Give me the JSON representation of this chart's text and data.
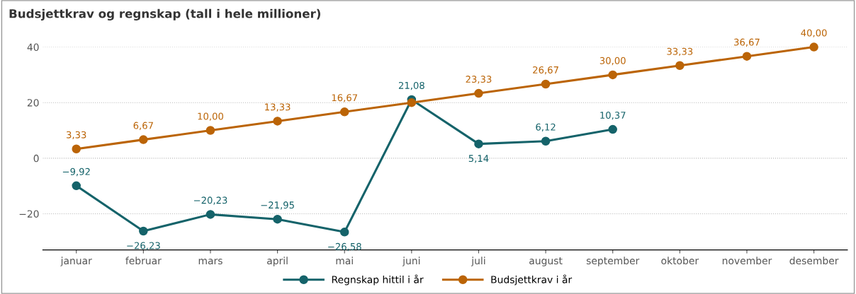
{
  "chart_data": {
    "type": "line",
    "title": "Budsjettkrav og regnskap (tall i hele millioner)",
    "categories": [
      "januar",
      "februar",
      "mars",
      "april",
      "mai",
      "juni",
      "juli",
      "august",
      "september",
      "oktober",
      "november",
      "desember"
    ],
    "series": [
      {
        "name": "Regnskap hittil i år",
        "color": "#15636a",
        "values": [
          -9.92,
          -26.23,
          -20.23,
          -21.95,
          -26.58,
          21.08,
          5.14,
          6.12,
          10.37,
          null,
          null,
          null
        ],
        "value_labels": [
          "−9,92",
          "−26,23",
          "−20,23",
          "−21,95",
          "−26,58",
          "21,08",
          "5,14",
          "6,12",
          "10,37",
          null,
          null,
          null
        ]
      },
      {
        "name": "Budsjettkrav i år",
        "color": "#bb6406",
        "values": [
          3.33,
          6.67,
          10.0,
          13.33,
          16.67,
          20.0,
          23.33,
          26.67,
          30.0,
          33.33,
          36.67,
          40.0
        ],
        "value_labels": [
          "3,33",
          "6,67",
          "10,00",
          "13,33",
          "16,67",
          null,
          "23,33",
          "26,67",
          "30,00",
          "33,33",
          "36,67",
          "40,00"
        ]
      }
    ],
    "ylim": [
      -33,
      40
    ],
    "yticks": [
      {
        "value": -20,
        "label": "−20"
      },
      0,
      20,
      40
    ],
    "grid": "y",
    "legend": "bottom",
    "marker": "circle",
    "line_style": "solid"
  }
}
